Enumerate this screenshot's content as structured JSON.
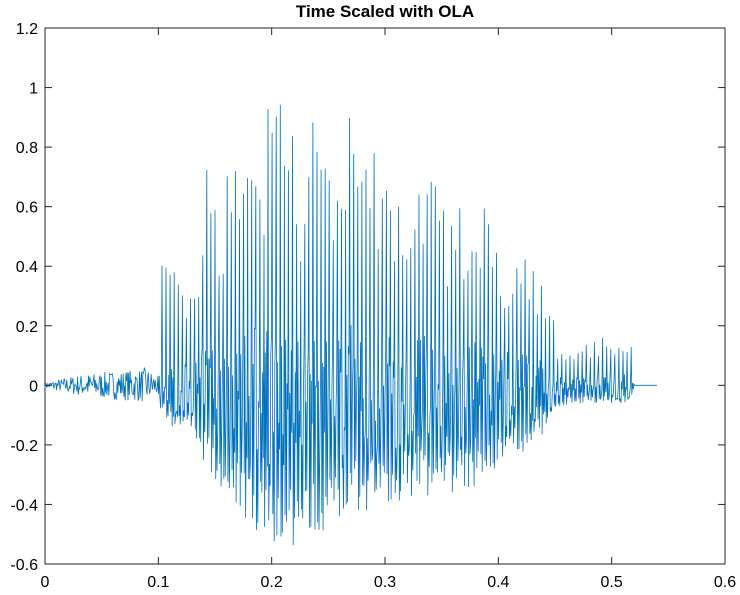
{
  "chart_data": {
    "type": "line",
    "title": "Time Scaled with OLA",
    "xlabel": "",
    "ylabel": "",
    "xlim": [
      0,
      0.6
    ],
    "ylim": [
      -0.6,
      1.2
    ],
    "xticks": [
      0,
      0.1,
      0.2,
      0.3,
      0.4,
      0.5,
      0.6
    ],
    "xtick_labels": [
      "0",
      "0.1",
      "0.2",
      "0.3",
      "0.4",
      "0.5",
      "0.6"
    ],
    "yticks": [
      -0.6,
      -0.4,
      -0.2,
      0,
      0.2,
      0.4,
      0.6,
      0.8,
      1,
      1.2
    ],
    "ytick_labels": [
      "-0.6",
      "-0.4",
      "-0.2",
      "0",
      "0.2",
      "0.4",
      "0.6",
      "0.8",
      "1",
      "1.2"
    ],
    "grid": false,
    "line_color": "#0072BD",
    "series": [
      {
        "x": [
          0,
          0.012,
          0.022,
          0.029,
          0.038,
          0.052,
          0.068,
          0.082,
          0.09,
          0.1,
          0.102,
          0.11,
          0.118,
          0.126,
          0.135,
          0.142,
          0.151,
          0.158,
          0.166,
          0.173,
          0.18,
          0.187,
          0.194,
          0.2,
          0.207,
          0.213,
          0.219,
          0.225,
          0.232,
          0.239,
          0.246,
          0.253,
          0.26,
          0.268,
          0.276,
          0.284,
          0.292,
          0.3,
          0.309,
          0.318,
          0.327,
          0.336,
          0.346,
          0.356,
          0.366,
          0.376,
          0.386,
          0.396,
          0.406,
          0.416,
          0.426,
          0.436,
          0.446,
          0.452,
          0.463,
          0.474,
          0.486,
          0.498,
          0.51,
          0.516,
          0.522,
          0.54
        ],
        "y_peak": [
          0.01,
          0.02,
          0.03,
          0.035,
          0.04,
          0.045,
          0.05,
          0.055,
          0.06,
          0.03,
          0.45,
          0.44,
          0.41,
          0.27,
          0.35,
          0.74,
          0.72,
          0.58,
          0.97,
          0.5,
          1.0,
          0.73,
          0.94,
          0.92,
          1.03,
          0.86,
          1.03,
          0.65,
          0.91,
          0.87,
          0.88,
          0.84,
          0.78,
          0.93,
          0.8,
          0.78,
          0.83,
          0.69,
          0.76,
          0.74,
          0.72,
          0.75,
          0.76,
          0.55,
          0.6,
          0.68,
          0.65,
          0.52,
          0.47,
          0.47,
          0.5,
          0.4,
          0.3,
          0.15,
          0.1,
          0.14,
          0.16,
          0.19,
          0.18,
          0.17,
          0.0,
          0.0
        ],
        "y_trough": [
          -0.01,
          -0.01,
          -0.02,
          -0.03,
          -0.03,
          -0.04,
          -0.04,
          -0.05,
          -0.05,
          -0.03,
          -0.08,
          -0.14,
          -0.15,
          -0.17,
          -0.2,
          -0.28,
          -0.33,
          -0.37,
          -0.41,
          -0.46,
          -0.48,
          -0.53,
          -0.5,
          -0.55,
          -0.56,
          -0.5,
          -0.55,
          -0.52,
          -0.56,
          -0.5,
          -0.49,
          -0.46,
          -0.45,
          -0.44,
          -0.43,
          -0.42,
          -0.41,
          -0.4,
          -0.4,
          -0.4,
          -0.38,
          -0.38,
          -0.37,
          -0.37,
          -0.36,
          -0.35,
          -0.33,
          -0.3,
          -0.27,
          -0.25,
          -0.22,
          -0.18,
          -0.12,
          -0.08,
          -0.06,
          -0.06,
          -0.06,
          -0.06,
          -0.06,
          -0.05,
          0.0,
          0.0
        ]
      }
    ]
  }
}
